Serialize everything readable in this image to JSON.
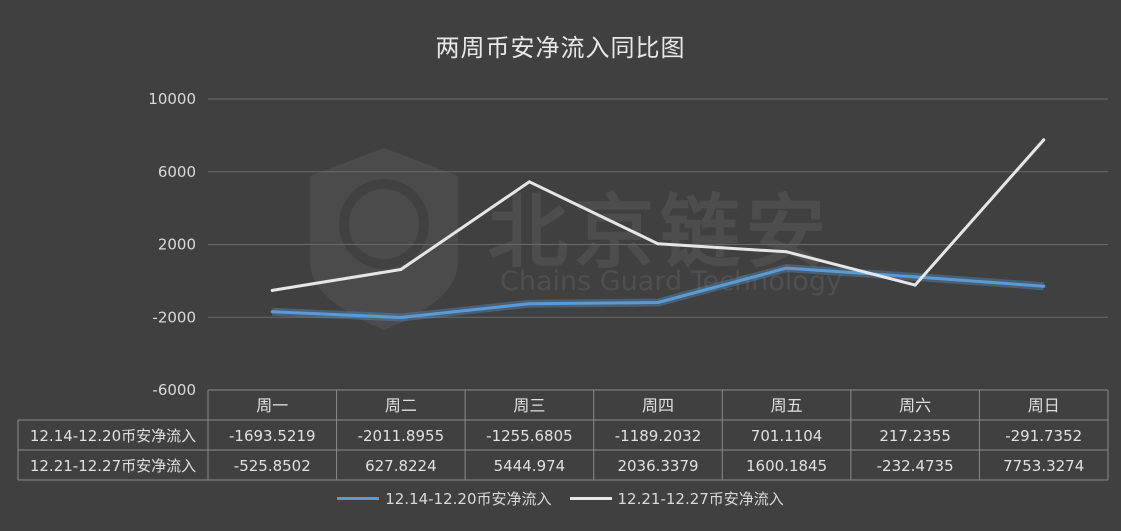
{
  "chart_data": {
    "type": "line",
    "title": "两周币安净流入同比图",
    "categories": [
      "周一",
      "周二",
      "周三",
      "周四",
      "周五",
      "周六",
      "周日"
    ],
    "ylim": [
      -6000,
      10000
    ],
    "yticks": [
      10000,
      6000,
      2000,
      -2000,
      -6000
    ],
    "grid": true,
    "legend_position": "bottom",
    "series": [
      {
        "name": "12.14-12.20币安净流入",
        "color": "#5b9bd5",
        "values": [
          -1693.5219,
          -2011.8955,
          -1255.6805,
          -1189.2032,
          701.1104,
          217.2355,
          -291.7352
        ],
        "labels": [
          "-1693.5219",
          "-2011.8955",
          "-1255.6805",
          "-1189.2032",
          "701.1104",
          "217.2355",
          "-291.7352"
        ]
      },
      {
        "name": "12.21-12.27币安净流入",
        "color": "#e6e6e6",
        "values": [
          -525.8502,
          627.8224,
          5444.974,
          2036.3379,
          1600.1845,
          -232.4735,
          7753.3274
        ],
        "labels": [
          "-525.8502",
          "627.8224",
          "5444.974",
          "2036.3379",
          "1600.1845",
          "-232.4735",
          "7753.3274"
        ]
      }
    ]
  },
  "watermark": {
    "cn": "北京链安",
    "en": "Chains Guard Technology"
  }
}
